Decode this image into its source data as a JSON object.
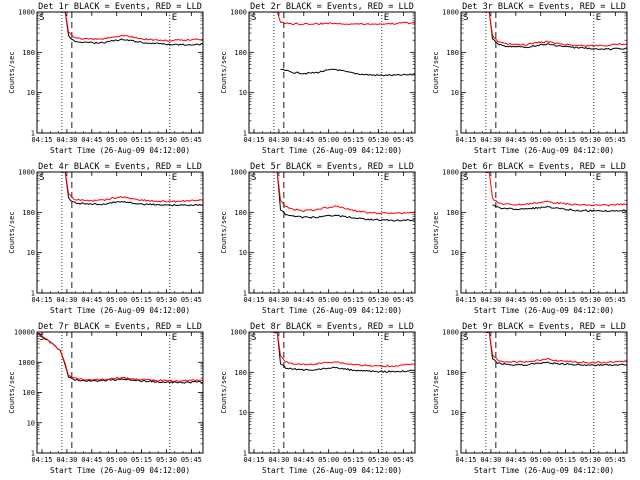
{
  "figure_title_suffix": "BLACK = Events, RED = LLD",
  "colors": {
    "events": "#000000",
    "lld": "#ff0000",
    "axes": "#000000"
  },
  "chart_data": [
    {
      "type": "line",
      "title": "Det 1r BLACK = Events, RED = LLD",
      "xlabel": "Start Time (26-Aug-09 04:12:00)",
      "ylabel": "Counts/sec",
      "yscale": "log",
      "xlim": [
        "04:12",
        "05:52"
      ],
      "ylim": [
        1,
        1000
      ],
      "yticks": [
        "1",
        "10",
        "100",
        "1000"
      ],
      "xticks": [
        "04:15",
        "04:30",
        "04:45",
        "05:00",
        "05:15",
        "05:30",
        "05:45"
      ],
      "markers": {
        "start": "S",
        "end": "E"
      },
      "vlines": {
        "dotted": [
          "04:27",
          "05:32"
        ],
        "dashed": "04:33"
      },
      "series": [
        {
          "name": "",
          "color": "#000000",
          "x": [
            "04:27",
            "04:29",
            "04:31",
            "04:34",
            "04:38",
            "04:45",
            "04:52",
            "04:58",
            "05:04",
            "05:10",
            "05:16",
            "05:22",
            "05:30",
            "05:40",
            "05:52"
          ],
          "y": [
            1000,
            1000,
            260,
            195,
            180,
            172,
            175,
            195,
            210,
            190,
            175,
            168,
            160,
            155,
            160
          ]
        },
        {
          "name": "",
          "color": "#ff0000",
          "x": [
            "04:27",
            "04:29",
            "04:31",
            "04:34",
            "04:38",
            "04:45",
            "04:52",
            "04:58",
            "05:04",
            "05:10",
            "05:16",
            "05:22",
            "05:30",
            "05:40",
            "05:52"
          ],
          "y": [
            1000,
            1000,
            330,
            240,
            220,
            210,
            215,
            245,
            265,
            235,
            215,
            205,
            195,
            200,
            215
          ]
        }
      ]
    },
    {
      "type": "line",
      "title": "Det 2r BLACK = Events, RED = LLD",
      "xlabel": "Start Time (26-Aug-09 04:12:00)",
      "ylabel": "Counts/sec",
      "yscale": "log",
      "xlim": [
        "04:12",
        "05:52"
      ],
      "ylim": [
        1,
        1000
      ],
      "yticks": [
        "1",
        "10",
        "100",
        "1000"
      ],
      "xticks": [
        "04:15",
        "04:30",
        "04:45",
        "05:00",
        "05:15",
        "05:30",
        "05:45"
      ],
      "markers": {
        "start": "S",
        "end": "E"
      },
      "vlines": {
        "dotted": [
          "04:27",
          "05:32"
        ],
        "dashed": "04:33"
      },
      "series": [
        {
          "name": "",
          "color": "#000000",
          "x": [
            "04:31",
            "04:38",
            "04:45",
            "04:52",
            "04:58",
            "05:04",
            "05:10",
            "05:16",
            "05:22",
            "05:30",
            "05:40",
            "05:52"
          ],
          "y": [
            38,
            32,
            30,
            31,
            35,
            38,
            33,
            30,
            28,
            27,
            27,
            28
          ]
        },
        {
          "name": "",
          "color": "#ff0000",
          "x": [
            "04:27",
            "04:29",
            "04:31",
            "04:34",
            "04:38",
            "04:45",
            "04:52",
            "04:58",
            "05:04",
            "05:10",
            "05:16",
            "05:22",
            "05:30",
            "05:40",
            "05:52"
          ],
          "y": [
            1000,
            1000,
            560,
            520,
            510,
            505,
            510,
            520,
            525,
            515,
            510,
            505,
            510,
            520,
            540
          ]
        }
      ]
    },
    {
      "type": "line",
      "title": "Det 3r BLACK = Events, RED = LLD",
      "xlabel": "Start Time (26-Aug-09 04:12:00)",
      "ylabel": "Counts/sec",
      "yscale": "log",
      "xlim": [
        "04:12",
        "05:52"
      ],
      "ylim": [
        1,
        1000
      ],
      "yticks": [
        "1",
        "10",
        "100",
        "1000"
      ],
      "xticks": [
        "04:15",
        "04:30",
        "04:45",
        "05:00",
        "05:15",
        "05:30",
        "05:45"
      ],
      "markers": {
        "start": "S",
        "end": "E"
      },
      "vlines": {
        "dotted": [
          "04:27",
          "05:32"
        ],
        "dashed": "04:33"
      },
      "series": [
        {
          "name": "",
          "color": "#000000",
          "x": [
            "04:27",
            "04:29",
            "04:31",
            "04:34",
            "04:38",
            "04:45",
            "04:52",
            "04:58",
            "05:04",
            "05:10",
            "05:16",
            "05:22",
            "05:30",
            "05:40",
            "05:52"
          ],
          "y": [
            1000,
            1000,
            220,
            160,
            145,
            135,
            135,
            150,
            160,
            145,
            135,
            130,
            125,
            120,
            125
          ]
        },
        {
          "name": "",
          "color": "#ff0000",
          "x": [
            "04:27",
            "04:29",
            "04:31",
            "04:34",
            "04:38",
            "04:45",
            "04:52",
            "04:58",
            "05:04",
            "05:10",
            "05:16",
            "05:22",
            "05:30",
            "05:40",
            "05:52"
          ],
          "y": [
            1000,
            1000,
            260,
            185,
            165,
            155,
            155,
            175,
            185,
            165,
            155,
            150,
            145,
            150,
            165
          ]
        }
      ]
    },
    {
      "type": "line",
      "title": "Det 4r BLACK = Events, RED = LLD",
      "xlabel": "Start Time (26-Aug-09 04:12:00)",
      "ylabel": "Counts/sec",
      "yscale": "log",
      "xlim": [
        "04:12",
        "05:52"
      ],
      "ylim": [
        1,
        1000
      ],
      "yticks": [
        "1",
        "10",
        "100",
        "1000"
      ],
      "xticks": [
        "04:15",
        "04:30",
        "04:45",
        "05:00",
        "05:15",
        "05:30",
        "05:45"
      ],
      "markers": {
        "start": "S",
        "end": "E"
      },
      "vlines": {
        "dotted": [
          "04:27",
          "05:32"
        ],
        "dashed": "04:33"
      },
      "series": [
        {
          "name": "",
          "color": "#000000",
          "x": [
            "04:27",
            "04:29",
            "04:31",
            "04:34",
            "04:38",
            "04:45",
            "04:52",
            "04:58",
            "05:04",
            "05:10",
            "05:16",
            "05:22",
            "05:30",
            "05:40",
            "05:52"
          ],
          "y": [
            1000,
            1000,
            230,
            175,
            165,
            160,
            160,
            175,
            185,
            170,
            160,
            155,
            150,
            150,
            155
          ]
        },
        {
          "name": "",
          "color": "#ff0000",
          "x": [
            "04:27",
            "04:29",
            "04:31",
            "04:34",
            "04:38",
            "04:45",
            "04:52",
            "04:58",
            "05:04",
            "05:10",
            "05:16",
            "05:22",
            "05:30",
            "05:40",
            "05:52"
          ],
          "y": [
            1000,
            1000,
            300,
            215,
            200,
            195,
            200,
            225,
            240,
            215,
            200,
            190,
            185,
            190,
            205
          ]
        }
      ]
    },
    {
      "type": "line",
      "title": "Det 5r BLACK = Events, RED = LLD",
      "xlabel": "Start Time (26-Aug-09 04:12:00)",
      "ylabel": "Counts/sec",
      "yscale": "log",
      "xlim": [
        "04:12",
        "05:52"
      ],
      "ylim": [
        1,
        1000
      ],
      "yticks": [
        "1",
        "10",
        "100",
        "1000"
      ],
      "xticks": [
        "04:15",
        "04:30",
        "04:45",
        "05:00",
        "05:15",
        "05:30",
        "05:45"
      ],
      "markers": {
        "start": "S",
        "end": "E"
      },
      "vlines": {
        "dotted": [
          "04:27",
          "05:32"
        ],
        "dashed": "04:33"
      },
      "series": [
        {
          "name": "",
          "color": "#000000",
          "x": [
            "04:27",
            "04:29",
            "04:31",
            "04:34",
            "04:38",
            "04:45",
            "04:52",
            "04:58",
            "05:04",
            "05:10",
            "05:16",
            "05:22",
            "05:30",
            "05:40",
            "05:52"
          ],
          "y": [
            1000,
            1000,
            120,
            90,
            80,
            75,
            75,
            82,
            85,
            78,
            72,
            68,
            65,
            62,
            65
          ]
        },
        {
          "name": "",
          "color": "#ff0000",
          "x": [
            "04:27",
            "04:29",
            "04:31",
            "04:34",
            "04:38",
            "04:45",
            "04:52",
            "04:58",
            "05:04",
            "05:10",
            "05:16",
            "05:22",
            "05:30",
            "05:40",
            "05:52"
          ],
          "y": [
            1000,
            1000,
            200,
            140,
            120,
            110,
            115,
            130,
            140,
            125,
            110,
            100,
            95,
            95,
            100
          ]
        }
      ]
    },
    {
      "type": "line",
      "title": "Det 6r BLACK = Events, RED = LLD",
      "xlabel": "Start Time (26-Aug-09 04:12:00)",
      "ylabel": "Counts/sec",
      "yscale": "log",
      "xlim": [
        "04:12",
        "05:52"
      ],
      "ylim": [
        1,
        1000
      ],
      "yticks": [
        "1",
        "10",
        "100",
        "1000"
      ],
      "xticks": [
        "04:15",
        "04:30",
        "04:45",
        "05:00",
        "05:15",
        "05:30",
        "05:45"
      ],
      "markers": {
        "start": "S",
        "end": "E"
      },
      "vlines": {
        "dotted": [
          "04:27",
          "05:32"
        ],
        "dashed": "04:33"
      },
      "series": [
        {
          "name": "",
          "color": "#000000",
          "x": [
            "04:31",
            "04:34",
            "04:38",
            "04:45",
            "04:52",
            "04:58",
            "05:04",
            "05:10",
            "05:16",
            "05:22",
            "05:30",
            "05:40",
            "05:52"
          ],
          "y": [
            150,
            135,
            125,
            120,
            120,
            130,
            135,
            125,
            118,
            112,
            110,
            108,
            112
          ]
        },
        {
          "name": "",
          "color": "#ff0000",
          "x": [
            "04:27",
            "04:29",
            "04:31",
            "04:34",
            "04:38",
            "04:45",
            "04:52",
            "04:58",
            "05:04",
            "05:10",
            "05:16",
            "05:22",
            "05:30",
            "05:40",
            "05:52"
          ],
          "y": [
            1000,
            1000,
            220,
            175,
            160,
            155,
            160,
            175,
            185,
            170,
            160,
            155,
            150,
            150,
            160
          ]
        }
      ]
    },
    {
      "type": "line",
      "title": "Det 7r BLACK = Events, RED = LLD",
      "xlabel": "Start Time (26-Aug-09 04:12:00)",
      "ylabel": "Counts/sec",
      "yscale": "log",
      "xlim": [
        "04:12",
        "05:52"
      ],
      "ylim": [
        1,
        10000
      ],
      "yticks": [
        "1",
        "10",
        "100",
        "1000",
        "10000"
      ],
      "xticks": [
        "04:15",
        "04:30",
        "04:45",
        "05:00",
        "05:15",
        "05:30",
        "05:45"
      ],
      "markers": {
        "start": "S",
        "end": "E"
      },
      "vlines": {
        "dotted": [
          "04:27",
          "05:32"
        ],
        "dashed": "04:33"
      },
      "series": [
        {
          "name": "",
          "color": "#000000",
          "x": [
            "04:12",
            "04:14",
            "04:17",
            "04:20",
            "04:23",
            "04:26",
            "04:29",
            "04:31",
            "04:34",
            "04:38",
            "04:45",
            "04:52",
            "04:58",
            "05:04",
            "05:10",
            "05:16",
            "05:22",
            "05:30",
            "05:40",
            "05:52"
          ],
          "y": [
            9000,
            8000,
            6000,
            4500,
            3500,
            2500,
            800,
            320,
            270,
            250,
            240,
            245,
            265,
            275,
            255,
            240,
            230,
            220,
            215,
            220
          ]
        },
        {
          "name": "",
          "color": "#ff0000",
          "x": [
            "04:12",
            "04:14",
            "04:17",
            "04:20",
            "04:23",
            "04:26",
            "04:29",
            "04:31",
            "04:34",
            "04:38",
            "04:45",
            "04:52",
            "04:58",
            "05:04",
            "05:10",
            "05:16",
            "05:22",
            "05:30",
            "05:40",
            "05:52"
          ],
          "y": [
            9000,
            8000,
            6000,
            4500,
            3500,
            2500,
            900,
            360,
            300,
            275,
            265,
            270,
            295,
            305,
            280,
            265,
            255,
            245,
            245,
            255
          ]
        }
      ]
    },
    {
      "type": "line",
      "title": "Det 8r BLACK = Events, RED = LLD",
      "xlabel": "Start Time (26-Aug-09 04:12:00)",
      "ylabel": "Counts/sec",
      "yscale": "log",
      "xlim": [
        "04:12",
        "05:52"
      ],
      "ylim": [
        1,
        1000
      ],
      "yticks": [
        "1",
        "10",
        "100",
        "1000"
      ],
      "xticks": [
        "04:15",
        "04:30",
        "04:45",
        "05:00",
        "05:15",
        "05:30",
        "05:45"
      ],
      "markers": {
        "start": "S",
        "end": "E"
      },
      "vlines": {
        "dotted": [
          "04:27",
          "05:32"
        ],
        "dashed": "04:33"
      },
      "series": [
        {
          "name": "",
          "color": "#000000",
          "x": [
            "04:27",
            "04:29",
            "04:31",
            "04:34",
            "04:38",
            "04:45",
            "04:52",
            "04:58",
            "05:04",
            "05:10",
            "05:16",
            "05:22",
            "05:30",
            "05:40",
            "05:52"
          ],
          "y": [
            1000,
            1000,
            170,
            130,
            120,
            115,
            115,
            125,
            130,
            120,
            112,
            108,
            105,
            105,
            110
          ]
        },
        {
          "name": "",
          "color": "#ff0000",
          "x": [
            "04:27",
            "04:29",
            "04:31",
            "04:34",
            "04:38",
            "04:45",
            "04:52",
            "04:58",
            "05:04",
            "05:10",
            "05:16",
            "05:22",
            "05:30",
            "05:40",
            "05:52"
          ],
          "y": [
            1000,
            1000,
            260,
            180,
            165,
            155,
            160,
            175,
            185,
            165,
            155,
            148,
            142,
            145,
            160
          ]
        }
      ]
    },
    {
      "type": "line",
      "title": "Det 9r BLACK = Events, RED = LLD",
      "xlabel": "Start Time (26-Aug-09 04:12:00)",
      "ylabel": "Counts/sec",
      "yscale": "log",
      "xlim": [
        "04:12",
        "05:52"
      ],
      "ylim": [
        1,
        1000
      ],
      "yticks": [
        "1",
        "10",
        "100",
        "1000"
      ],
      "xticks": [
        "04:15",
        "04:30",
        "04:45",
        "05:00",
        "05:15",
        "05:30",
        "05:45"
      ],
      "markers": {
        "start": "S",
        "end": "E"
      },
      "vlines": {
        "dotted": [
          "04:27",
          "05:32"
        ],
        "dashed": "04:33"
      },
      "series": [
        {
          "name": "",
          "color": "#000000",
          "x": [
            "04:27",
            "04:29",
            "04:31",
            "04:34",
            "04:38",
            "04:45",
            "04:52",
            "04:58",
            "05:04",
            "05:10",
            "05:16",
            "05:22",
            "05:30",
            "05:40",
            "05:52"
          ],
          "y": [
            1000,
            1000,
            220,
            170,
            160,
            155,
            155,
            165,
            175,
            165,
            160,
            155,
            150,
            150,
            155
          ]
        },
        {
          "name": "",
          "color": "#ff0000",
          "x": [
            "04:27",
            "04:29",
            "04:31",
            "04:34",
            "04:38",
            "04:45",
            "04:52",
            "04:58",
            "05:04",
            "05:10",
            "05:16",
            "05:22",
            "05:30",
            "05:40",
            "05:52"
          ],
          "y": [
            1000,
            1000,
            270,
            200,
            185,
            180,
            185,
            200,
            215,
            195,
            185,
            180,
            175,
            175,
            185
          ]
        }
      ]
    }
  ]
}
